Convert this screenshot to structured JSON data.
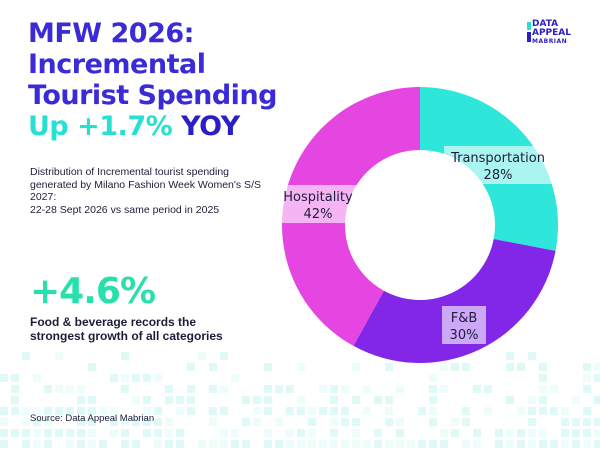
{
  "title": {
    "line1": "MFW 2026:",
    "line2": "Incremental",
    "line3": "Tourist Spending",
    "line4_accent": "Up +1.7%",
    "line4_rest": "YOY"
  },
  "description": {
    "line1": "Distribution of Incremental tourist spending generated by Milano Fashion Week Women's S/S 2027:",
    "line2": "22-28 Sept 2026 vs same period in 2025"
  },
  "highlight": {
    "value": "+4.6%",
    "text_line1": "Food & beverage records the",
    "text_line2": "strongest growth of all categories"
  },
  "source": "Source: Data Appeal Mabrian",
  "logo": {
    "line1": "DATA",
    "line2": "APPEAL",
    "line3": "MABRIAN"
  },
  "colors": {
    "title": "#2a1fc7",
    "accent": "#27e0d2",
    "highlight": "#27e0ac",
    "transportation": "#2fe6da",
    "fnb": "#8226e8",
    "hospitality": "#e545e0"
  },
  "chart_data": {
    "type": "pie",
    "donut": true,
    "slices": [
      {
        "label": "Transportation",
        "value": 28,
        "value_label": "28%",
        "color": "#2fe6da"
      },
      {
        "label": "F&B",
        "value": 30,
        "value_label": "30%",
        "color": "#8226e8"
      },
      {
        "label": "Hospitality",
        "value": 42,
        "value_label": "42%",
        "color": "#e545e0"
      }
    ]
  }
}
